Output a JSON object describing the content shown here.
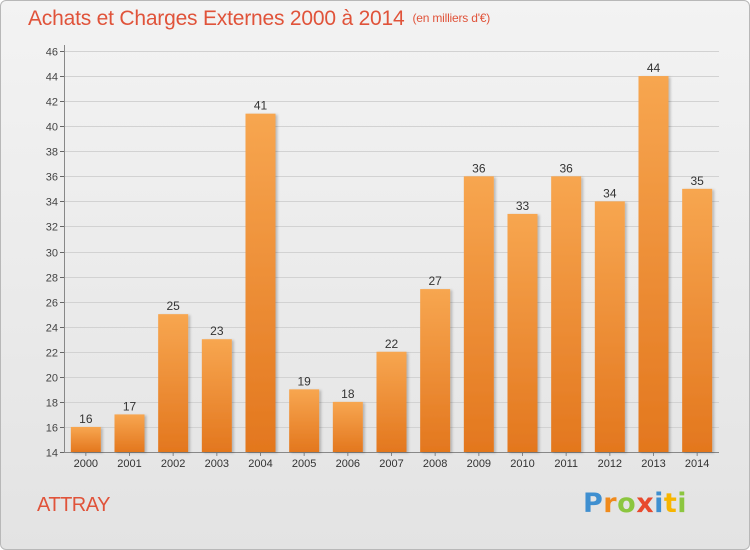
{
  "chart_data": {
    "type": "bar",
    "title": "Achats et Charges Externes 2000 à 2014",
    "subtitle": "(en milliers d'€)",
    "categories": [
      "2000",
      "2001",
      "2002",
      "2003",
      "2004",
      "2005",
      "2006",
      "2007",
      "2008",
      "2009",
      "2010",
      "2011",
      "2012",
      "2013",
      "2014"
    ],
    "values": [
      16,
      17,
      25,
      23,
      41,
      19,
      18,
      22,
      27,
      36,
      33,
      36,
      34,
      44,
      35
    ],
    "ylim": [
      14,
      46
    ],
    "yticks": [
      14,
      16,
      18,
      20,
      22,
      24,
      26,
      28,
      30,
      32,
      34,
      36,
      38,
      40,
      42,
      44,
      46
    ],
    "xlabel": "",
    "ylabel": "",
    "grid": true,
    "colors": {
      "bar_light": "#f7a650",
      "bar_dark": "#e3771e",
      "title": "#e0533a"
    }
  },
  "footer": {
    "commune": "ATTRAY",
    "logo": {
      "letters": [
        {
          "ch": "P",
          "color": "#3f8fd0"
        },
        {
          "ch": "r",
          "color": "#f08a1c"
        },
        {
          "ch": "o",
          "color": "#8cc63f"
        },
        {
          "ch": "x",
          "color": "#e84a2e"
        },
        {
          "ch": "i",
          "color": "#3f8fd0"
        },
        {
          "ch": "t",
          "color": "#f7b500"
        },
        {
          "ch": "i",
          "color": "#8cc63f"
        }
      ]
    }
  }
}
